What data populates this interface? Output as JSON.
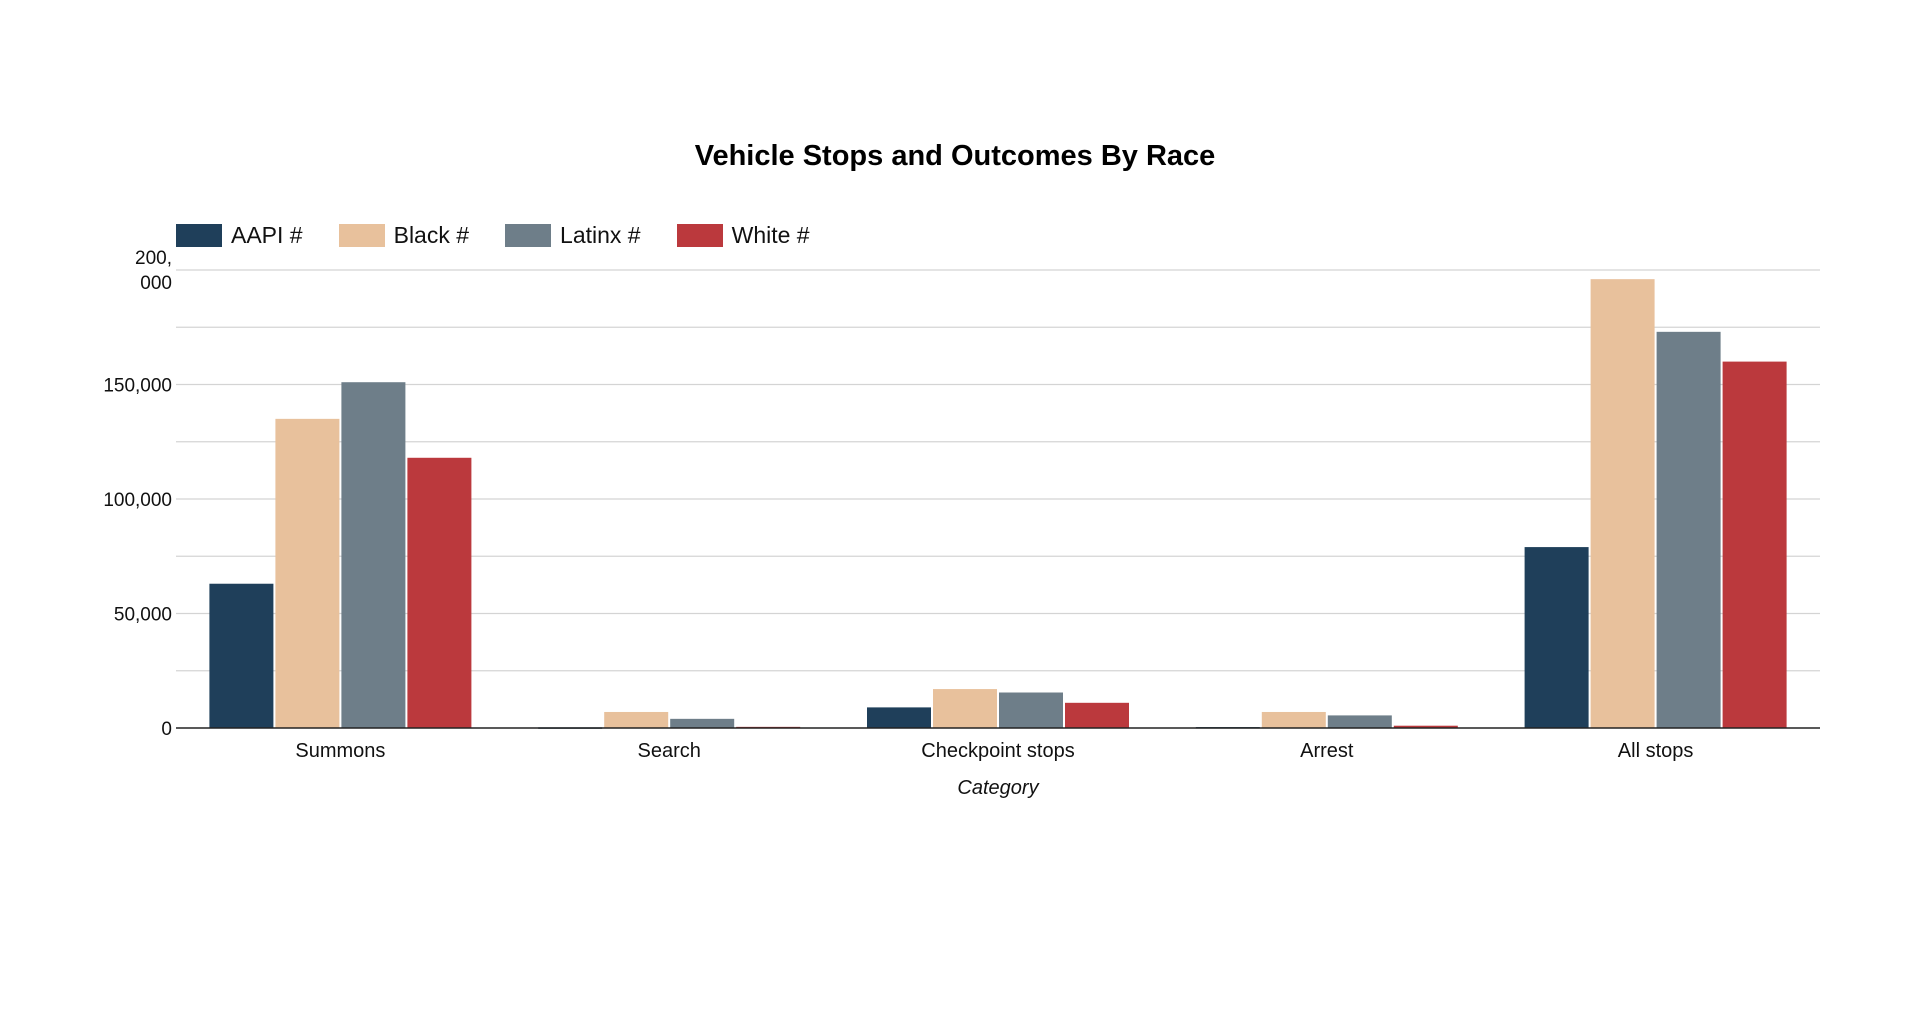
{
  "chart_data": {
    "type": "bar",
    "title": "Vehicle Stops and Outcomes By Race",
    "xlabel": "Category",
    "ylabel": "",
    "ylim": [
      0,
      200000
    ],
    "y_ticks": [
      0,
      50000,
      100000,
      150000,
      200000
    ],
    "y_tick_labels": [
      "0",
      "50,000",
      "100,000",
      "150,000",
      "200,\n000"
    ],
    "grid": true,
    "legend_position": "top-left",
    "categories": [
      "Summons",
      "Search",
      "Checkpoint stops",
      "Arrest",
      "All stops"
    ],
    "series": [
      {
        "name": "AAPI #",
        "color": "#1f3f5a",
        "values": [
          63000,
          300,
          9000,
          400,
          79000
        ]
      },
      {
        "name": "Black #",
        "color": "#e8c19c",
        "values": [
          135000,
          7000,
          17000,
          7000,
          196000
        ]
      },
      {
        "name": "Latinx #",
        "color": "#6e7e89",
        "values": [
          151000,
          4000,
          15500,
          5500,
          173000
        ]
      },
      {
        "name": "White #",
        "color": "#bb393d",
        "values": [
          118000,
          500,
          11000,
          1000,
          160000
        ]
      }
    ]
  }
}
